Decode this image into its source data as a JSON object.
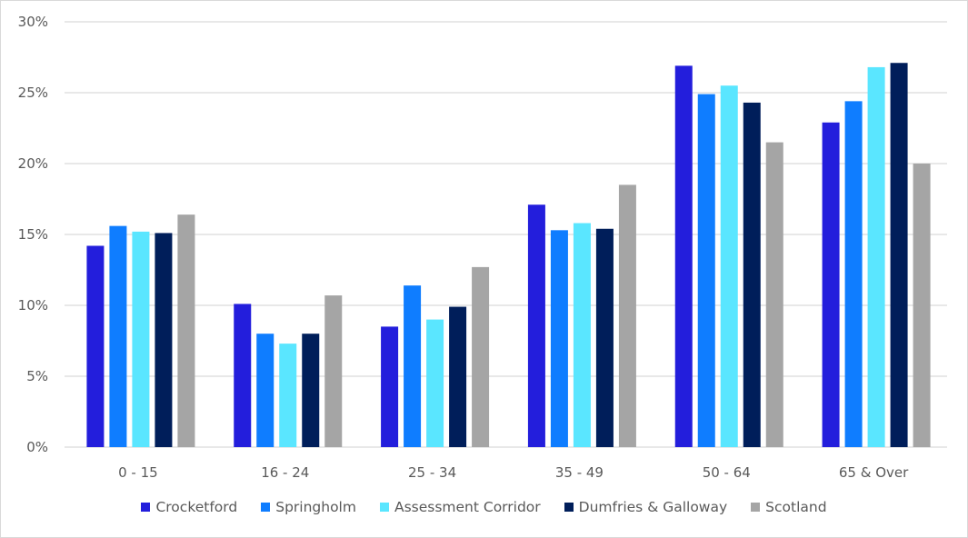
{
  "chart_data": {
    "type": "bar",
    "categories": [
      "0 - 15",
      "16 - 24",
      "25 - 34",
      "35 - 49",
      "50 - 64",
      "65 & Over"
    ],
    "series": [
      {
        "name": "Crocketford",
        "color": "#231EDC",
        "values": [
          14.2,
          10.1,
          8.5,
          17.1,
          26.9,
          22.9
        ]
      },
      {
        "name": "Springholm",
        "color": "#0F7DFF",
        "values": [
          15.6,
          8.0,
          11.4,
          15.3,
          24.9,
          24.4
        ]
      },
      {
        "name": "Assessment Corridor",
        "color": "#5AE6FF",
        "values": [
          15.2,
          7.3,
          9.0,
          15.8,
          25.5,
          26.8
        ]
      },
      {
        "name": "Dumfries & Galloway",
        "color": "#001E5A",
        "values": [
          15.1,
          8.0,
          9.9,
          15.4,
          24.3,
          27.1
        ]
      },
      {
        "name": "Scotland",
        "color": "#A5A5A5",
        "values": [
          16.4,
          10.7,
          12.7,
          18.5,
          21.5,
          20.0
        ]
      }
    ],
    "yticks": [
      "0%",
      "5%",
      "10%",
      "15%",
      "20%",
      "25%",
      "30%"
    ],
    "ylim": [
      0,
      30
    ],
    "grid": true,
    "legend_position": "bottom",
    "gridline_color": "#D9D9D9"
  }
}
